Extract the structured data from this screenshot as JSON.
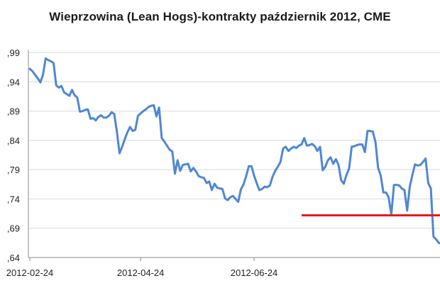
{
  "chart_data": {
    "type": "line",
    "title": "Wieprzowina (Lean Hogs)-kontrakty październik 2012, CME",
    "xlabel": "",
    "ylabel": "",
    "ylim": [
      0.64,
      0.99
    ],
    "yticks": [
      0.99,
      0.94,
      0.89,
      0.84,
      0.79,
      0.74,
      0.69,
      0.64
    ],
    "ytick_labels": [
      ",99",
      ",94",
      ",89",
      ",84",
      ",79",
      ",74",
      ",69",
      ",64"
    ],
    "x_tick_labels": [
      {
        "label": "2012-02-24",
        "index": 0
      },
      {
        "label": "2012-04-24",
        "index": 42
      },
      {
        "label": "2012-06-24",
        "index": 85
      }
    ],
    "grid": "horizontal",
    "colors": {
      "series": "#4f87d2",
      "reference": "#e31b23",
      "grid": "#d9d9d9",
      "axis": "#8c8c8c"
    },
    "series": [
      {
        "values": [
          0.962,
          0.958,
          0.952,
          0.946,
          0.939,
          0.952,
          0.98,
          0.977,
          0.975,
          0.972,
          0.934,
          0.93,
          0.933,
          0.922,
          0.919,
          0.916,
          0.926,
          0.917,
          0.913,
          0.889,
          0.89,
          0.892,
          0.893,
          0.877,
          0.878,
          0.874,
          0.88,
          0.883,
          0.879,
          0.879,
          0.882,
          0.888,
          0.885,
          0.855,
          0.818,
          0.829,
          0.842,
          0.854,
          0.863,
          0.856,
          0.858,
          0.882,
          0.886,
          0.89,
          0.893,
          0.897,
          0.899,
          0.9,
          0.881,
          0.896,
          0.844,
          0.838,
          0.831,
          0.824,
          0.821,
          0.783,
          0.806,
          0.788,
          0.798,
          0.799,
          0.8,
          0.787,
          0.793,
          0.787,
          0.779,
          0.777,
          0.776,
          0.767,
          0.77,
          0.755,
          0.766,
          0.759,
          0.758,
          0.757,
          0.741,
          0.738,
          0.743,
          0.745,
          0.74,
          0.735,
          0.756,
          0.765,
          0.779,
          0.796,
          0.796,
          0.78,
          0.767,
          0.755,
          0.757,
          0.761,
          0.76,
          0.763,
          0.778,
          0.788,
          0.795,
          0.803,
          0.826,
          0.829,
          0.822,
          0.826,
          0.829,
          0.827,
          0.831,
          0.833,
          0.844,
          0.831,
          0.832,
          0.834,
          0.83,
          0.822,
          0.829,
          0.789,
          0.795,
          0.806,
          0.811,
          0.8,
          0.808,
          0.798,
          0.772,
          0.766,
          0.781,
          0.792,
          0.829,
          0.83,
          0.832,
          0.833,
          0.833,
          0.82,
          0.856,
          0.856,
          0.855,
          0.837,
          0.793,
          0.78,
          0.751,
          0.751,
          0.743,
          0.713,
          0.764,
          0.764,
          0.763,
          0.758,
          0.755,
          0.72,
          0.761,
          0.781,
          0.799,
          0.797,
          0.798,
          0.803,
          0.809,
          0.767,
          0.758,
          0.676,
          0.671,
          0.665,
          0.664
        ]
      }
    ],
    "reference_line": {
      "y": 0.712,
      "x_start_index": 103,
      "x_end_index": 158
    }
  }
}
